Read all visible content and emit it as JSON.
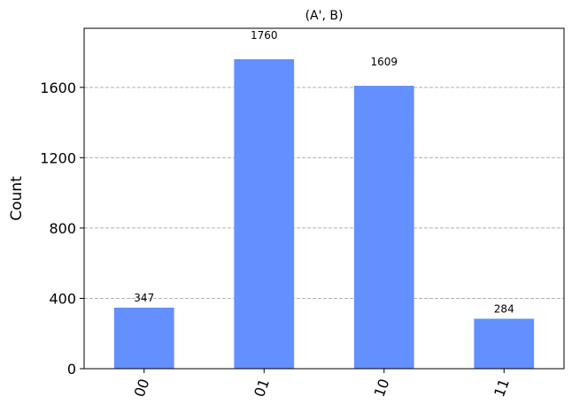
{
  "chart_data": {
    "type": "bar",
    "title": "(A', B)",
    "xlabel": "",
    "ylabel": "Count",
    "categories": [
      "00",
      "01",
      "10",
      "11"
    ],
    "values": [
      347,
      1760,
      1609,
      284
    ],
    "data_labels": [
      "347",
      "1760",
      "1609",
      "284"
    ],
    "yticks": [
      0,
      400,
      800,
      1200,
      1600
    ],
    "ytick_labels": [
      "0",
      "400",
      "800",
      "1200",
      "1600"
    ],
    "ylim": [
      0,
      1936
    ],
    "grid": "horizontal dashed",
    "legend": "none",
    "bar_color": "#648fff",
    "grid_color": "#b0b0b0",
    "xtick_rotation_deg": 70
  }
}
